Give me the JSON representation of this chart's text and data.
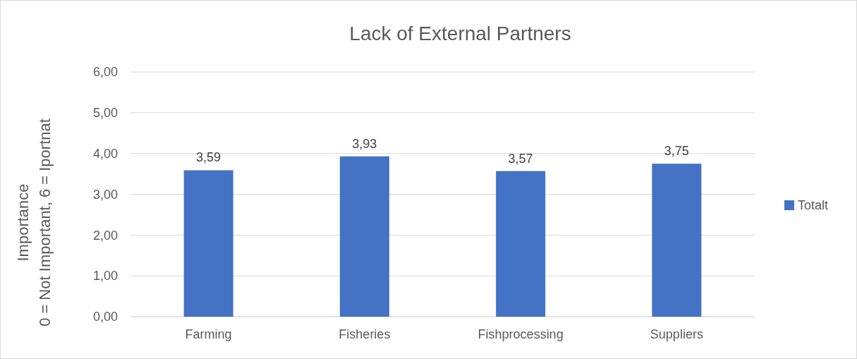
{
  "chart_data": {
    "type": "bar",
    "title": "Lack of External Partners",
    "ylabel": "Importance\n0 = Not Important, 6 = Iportnat",
    "categories": [
      "Farming",
      "Fisheries",
      "Fishprocessing",
      "Suppliers"
    ],
    "series": [
      {
        "name": "Totalt",
        "color": "#4472c4",
        "values": [
          3.59,
          3.93,
          3.57,
          3.75
        ],
        "value_labels": [
          "3,59",
          "3,93",
          "3,57",
          "3,75"
        ]
      }
    ],
    "ylim": [
      0,
      6
    ],
    "yticks": [
      {
        "value": 0,
        "label": "0,00"
      },
      {
        "value": 1,
        "label": "1,00"
      },
      {
        "value": 2,
        "label": "2,00"
      },
      {
        "value": 3,
        "label": "3,00"
      },
      {
        "value": 4,
        "label": "4,00"
      },
      {
        "value": 5,
        "label": "5,00"
      },
      {
        "value": 6,
        "label": "6,00"
      }
    ],
    "grid": "y",
    "legend": "right"
  }
}
